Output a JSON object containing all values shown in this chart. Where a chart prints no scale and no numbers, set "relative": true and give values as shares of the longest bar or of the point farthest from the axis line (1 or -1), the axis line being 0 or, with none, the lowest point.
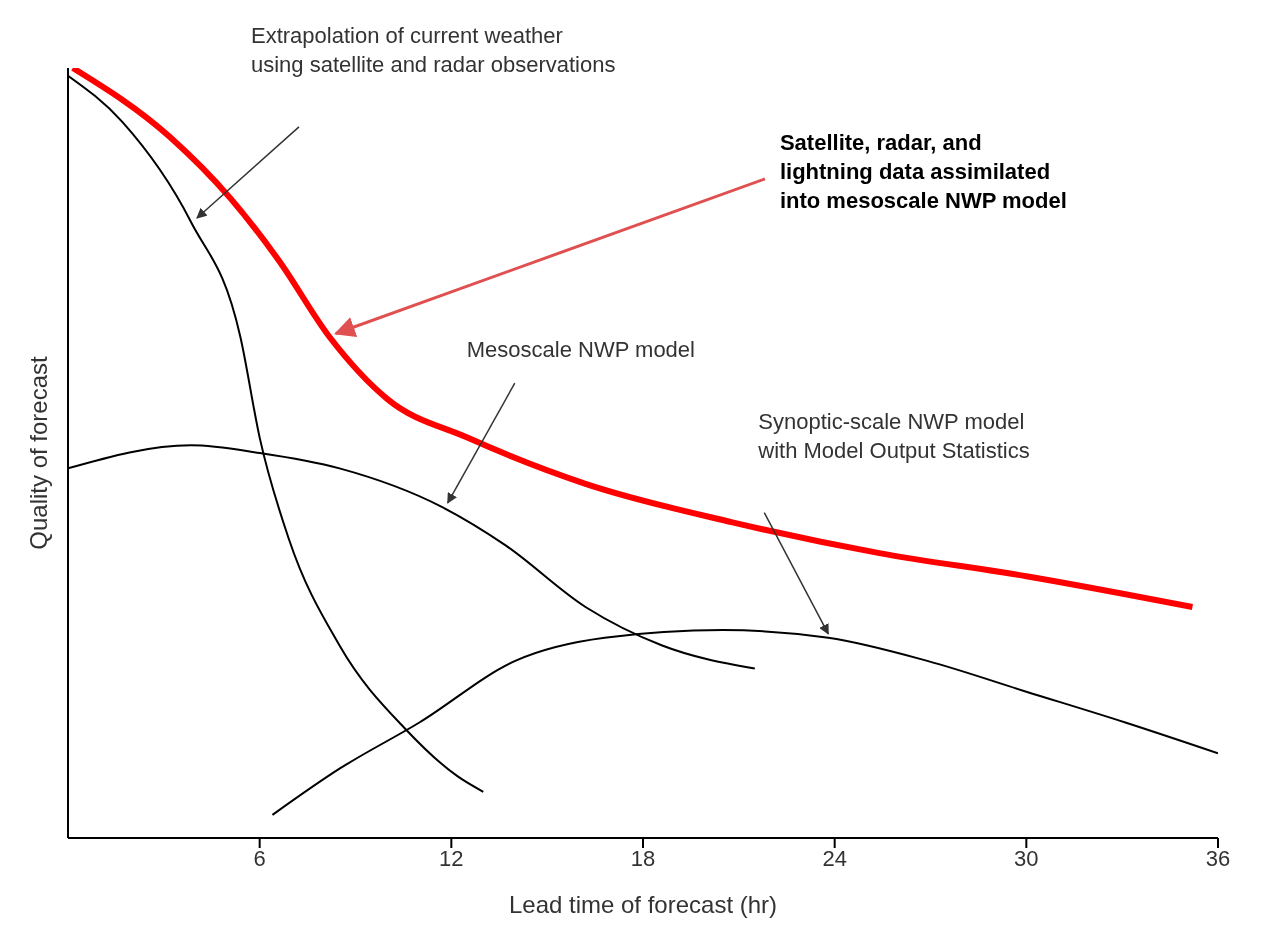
{
  "chart_data": {
    "type": "line",
    "relative": true,
    "xlabel": "Lead time of forecast (hr)",
    "ylabel": "Quality of forecast",
    "xlim": [
      0,
      36
    ],
    "xticks": [
      6,
      12,
      18,
      24,
      30,
      36
    ],
    "marker": "none",
    "line_style": "solid",
    "series": [
      {
        "color": "#000000",
        "x": [
          0,
          1.7,
          3.85,
          5.4,
          6,
          6.9,
          8.5,
          10.6,
          12.2,
          13
        ],
        "values": [
          0.99,
          0.93,
          0.8,
          0.65,
          0.52,
          0.39,
          0.25,
          0.14,
          0.08,
          0.06
        ]
      },
      {
        "color": "#000000",
        "x": [
          0,
          3.85,
          6,
          8.5,
          11.7,
          13.7,
          16.2,
          18.6,
          21.5
        ],
        "values": [
          0.48,
          0.51,
          0.5,
          0.48,
          0.43,
          0.38,
          0.3,
          0.25,
          0.22
        ]
      },
      {
        "color": "#000000",
        "x": [
          6.4,
          8.5,
          11,
          14,
          16.8,
          20.5,
          23.8,
          26.9,
          30,
          33.1,
          36
        ],
        "values": [
          0.03,
          0.09,
          0.15,
          0.23,
          0.26,
          0.27,
          0.26,
          0.23,
          0.19,
          0.15,
          0.11
        ]
      },
      {
        "color": "#ff0000",
        "x": [
          0.15,
          3.2,
          5.1,
          6.6,
          8.2,
          10,
          12.5,
          16.2,
          20.8,
          25.4,
          30,
          35.2
        ],
        "values": [
          1,
          0.91,
          0.83,
          0.75,
          0.65,
          0.57,
          0.52,
          0.46,
          0.41,
          0.37,
          0.34,
          0.3
        ]
      }
    ],
    "annotations": [
      "Extrapolation of current weather\nusing satellite and radar observations",
      "Satellite, radar, and\nlightning data assimilated\ninto mesoscale NWP model",
      "Mesoscale NWP model",
      "Synoptic-scale NWP model\nwith Model Output Statistics"
    ]
  }
}
